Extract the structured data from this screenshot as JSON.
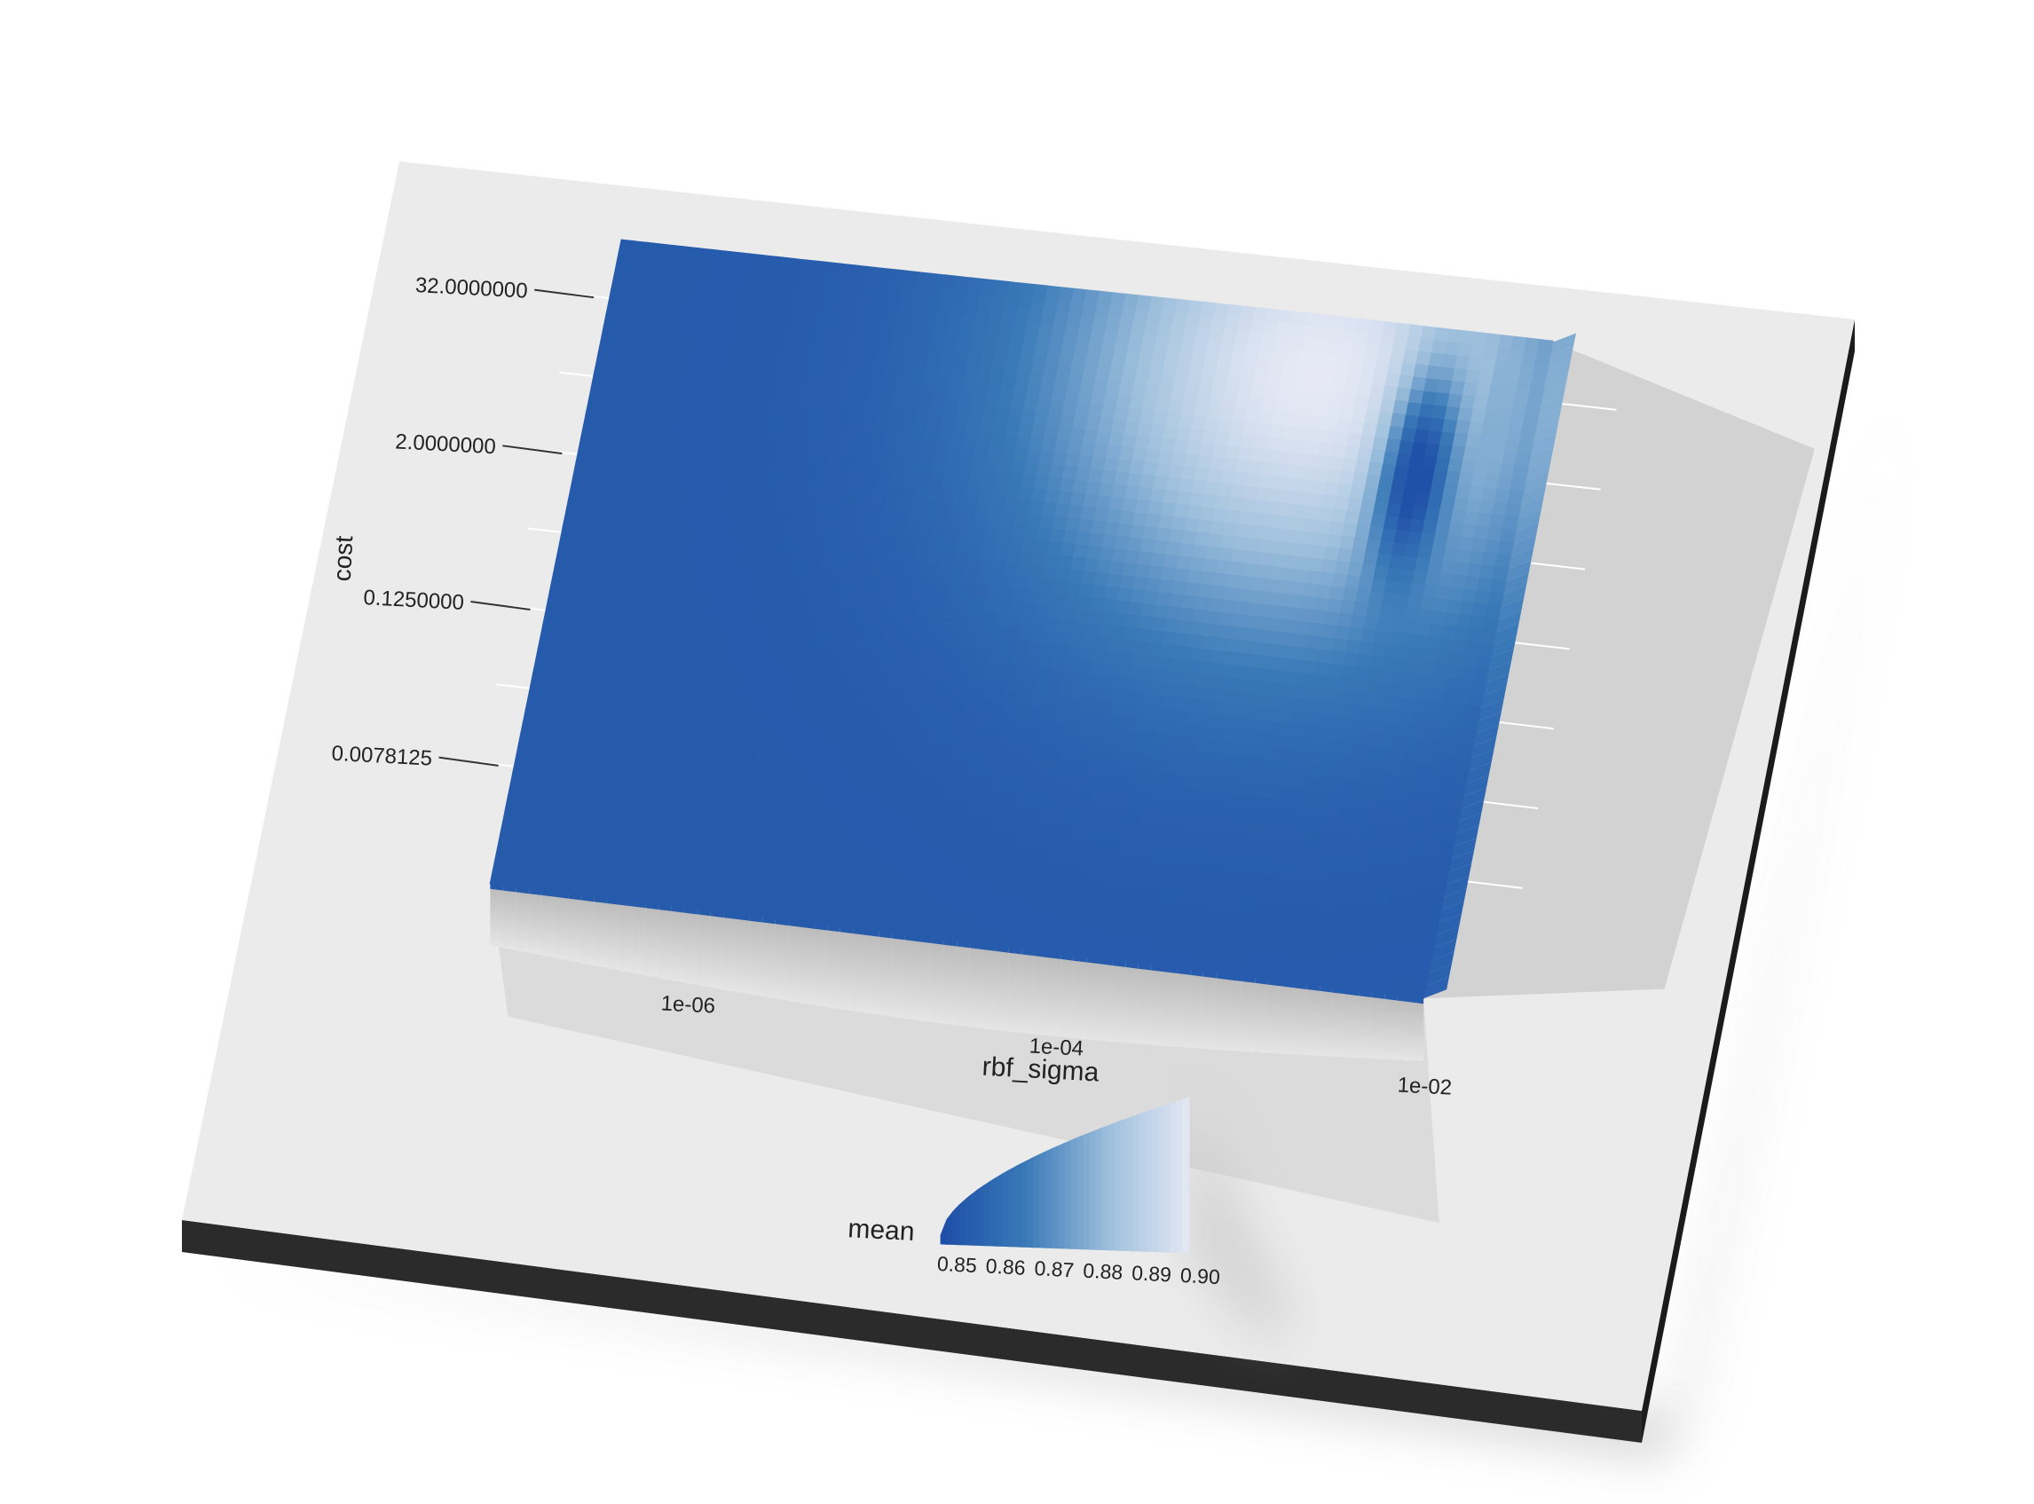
{
  "chart_data": {
    "type": "heatmap",
    "render_style": "3d-raised-surface",
    "title": "",
    "xlabel": "rbf_sigma",
    "ylabel": "cost",
    "x_scale": "log10",
    "y_scale": "log2",
    "x_ticks": [
      "1e-06",
      "1e-04",
      "1e-02"
    ],
    "y_ticks": [
      "0.0078125",
      "0.1250000",
      "2.0000000",
      "32.0000000"
    ],
    "xlim": [
      3e-08,
      0.2
    ],
    "ylim": [
      0.0009765625,
      90
    ],
    "grid": true,
    "colorbar": {
      "title": "mean",
      "ticks": [
        "0.85",
        "0.86",
        "0.87",
        "0.88",
        "0.89",
        "0.90"
      ],
      "range": [
        0.85,
        0.905
      ],
      "colors": [
        "#1f4fa8",
        "#3a7ab8",
        "#9dbfdc",
        "#e6e9f5"
      ]
    },
    "surface_model": {
      "base": 0.855,
      "peak_value": 0.905,
      "peak_log10_sigma": -2.35,
      "peak_log2_cost": 5.0,
      "dip_value": 0.851,
      "dip_log10_sigma": -1.5,
      "dip_log2_cost": 3.0
    },
    "annotations": []
  },
  "colors": {
    "panel_top": "#ebebeb",
    "panel_side": "#2b2b2b",
    "grid": "#ffffff",
    "shadow": "#c9c9c9"
  }
}
